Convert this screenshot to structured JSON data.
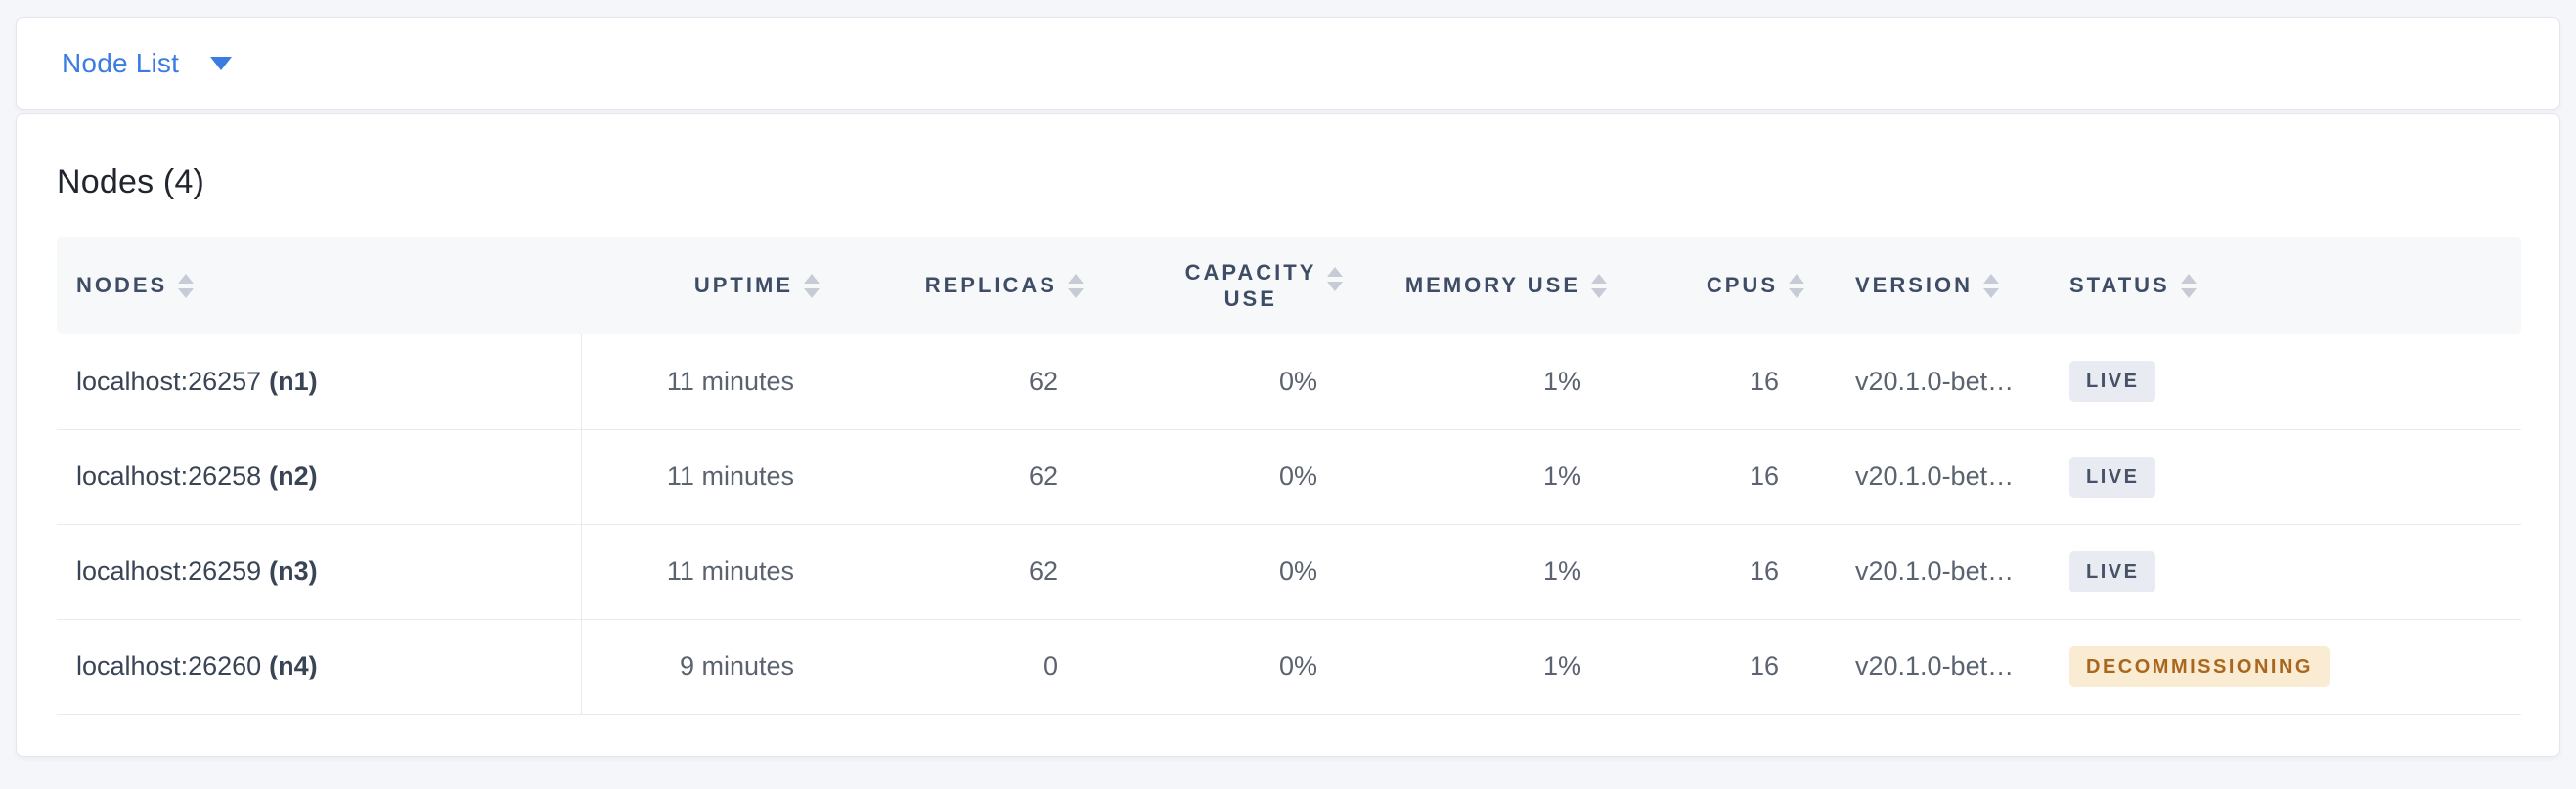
{
  "header_bar": {
    "selector_label": "Node List"
  },
  "panel": {
    "title": "Nodes (4)"
  },
  "table": {
    "columns": [
      {
        "key": "node",
        "label": "NODES",
        "align": "left",
        "wrap": false
      },
      {
        "key": "uptime",
        "label": "UPTIME",
        "align": "right",
        "wrap": false
      },
      {
        "key": "replicas",
        "label": "REPLICAS",
        "align": "right",
        "wrap": false
      },
      {
        "key": "capacity",
        "label": "CAPACITY USE",
        "align": "right",
        "wrap": true
      },
      {
        "key": "memory",
        "label": "MEMORY USE",
        "align": "right",
        "wrap": false
      },
      {
        "key": "cpus",
        "label": "CPUS",
        "align": "right",
        "wrap": false
      },
      {
        "key": "version",
        "label": "VERSION",
        "align": "left",
        "wrap": false
      },
      {
        "key": "status",
        "label": "STATUS",
        "align": "left",
        "wrap": false
      }
    ],
    "rows": [
      {
        "node": "localhost:26257",
        "id": "(n1)",
        "uptime": "11 minutes",
        "replicas": "62",
        "capacity": "0%",
        "memory": "1%",
        "cpus": "16",
        "version": "v20.1.0-bet…",
        "status": "LIVE",
        "status_type": "live"
      },
      {
        "node": "localhost:26258",
        "id": "(n2)",
        "uptime": "11 minutes",
        "replicas": "62",
        "capacity": "0%",
        "memory": "1%",
        "cpus": "16",
        "version": "v20.1.0-bet…",
        "status": "LIVE",
        "status_type": "live"
      },
      {
        "node": "localhost:26259",
        "id": "(n3)",
        "uptime": "11 minutes",
        "replicas": "62",
        "capacity": "0%",
        "memory": "1%",
        "cpus": "16",
        "version": "v20.1.0-bet…",
        "status": "LIVE",
        "status_type": "live"
      },
      {
        "node": "localhost:26260",
        "id": "(n4)",
        "uptime": "9 minutes",
        "replicas": "0",
        "capacity": "0%",
        "memory": "1%",
        "cpus": "16",
        "version": "v20.1.0-bet…",
        "status": "DECOMMISSIONING",
        "status_type": "decommissioning"
      }
    ]
  },
  "colors": {
    "accent_blue": "#3b7ce2",
    "page_background": "#f4f6fa",
    "card_background": "#ffffff",
    "card_border": "#e3e7ed",
    "table_header_background": "#f7f8fa",
    "table_header_text": "#3e4c66",
    "row_border": "#e7eaf0",
    "node_text": "#394455",
    "value_text": "#5b6370",
    "badge_live_bg": "#e8ebf2",
    "badge_live_text": "#475266",
    "badge_decommissioning_bg": "#f9ecd2",
    "badge_decommissioning_text": "#a9661c"
  }
}
